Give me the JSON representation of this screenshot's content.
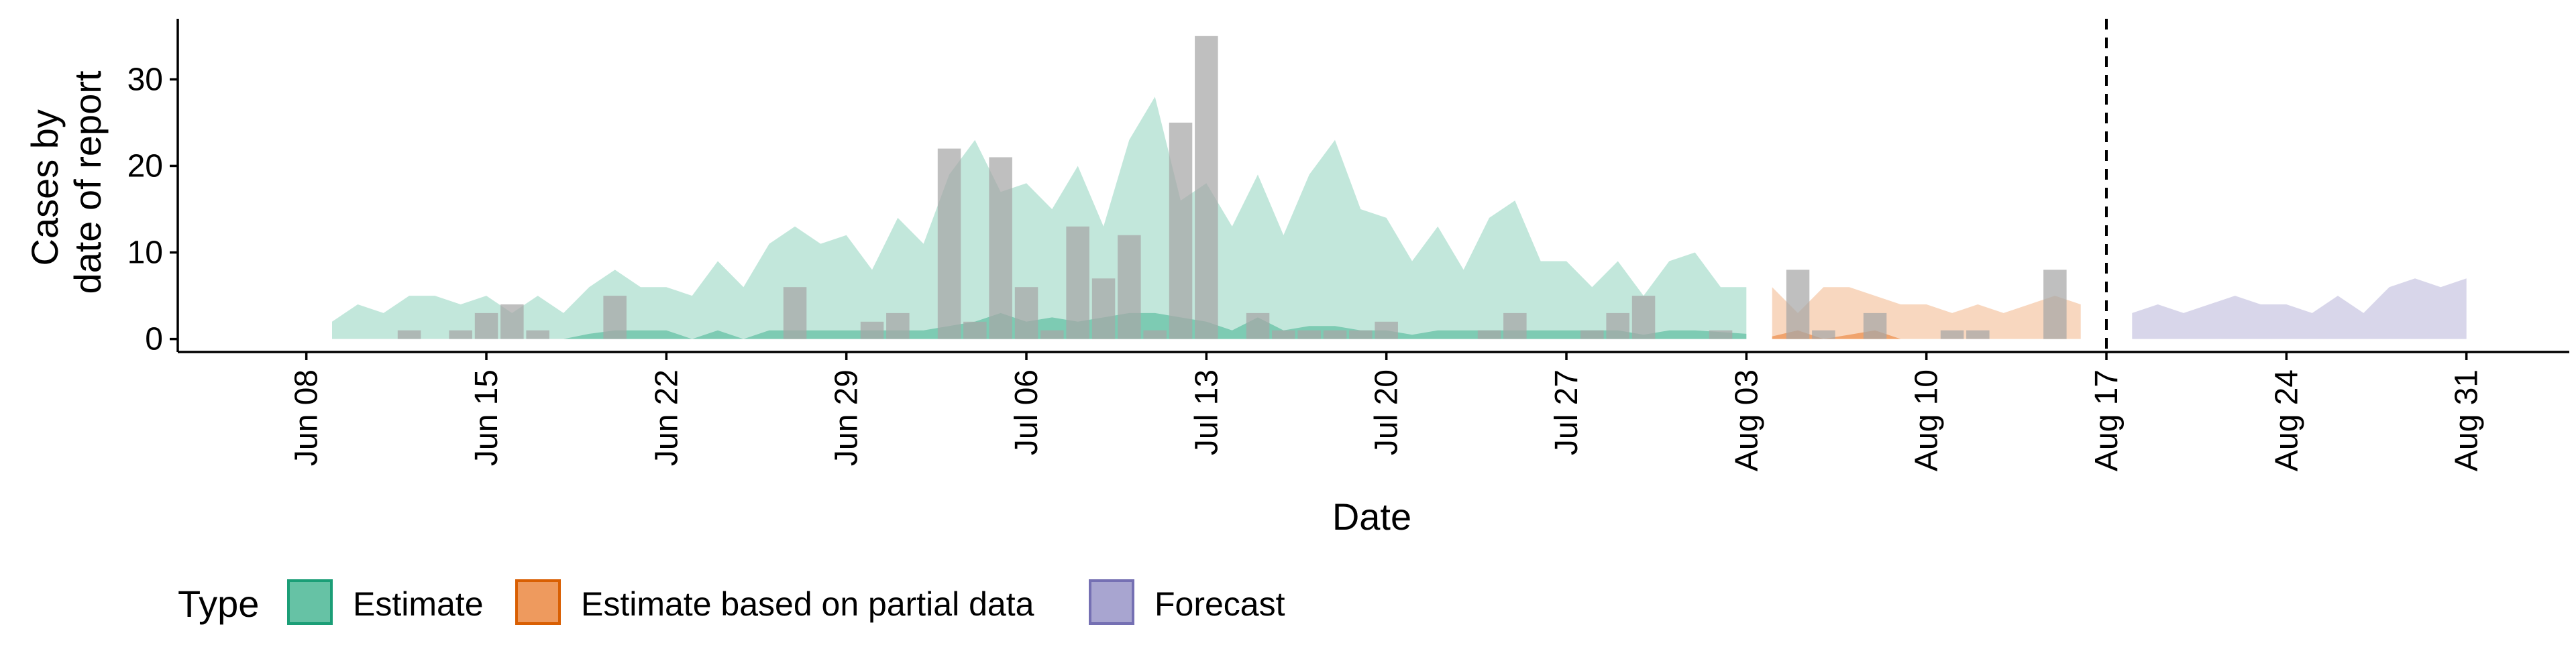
{
  "chart_data": {
    "type": "area",
    "xlabel": "Date",
    "ylabel_lines": [
      "Cases by",
      "date of report"
    ],
    "x_range": [
      "2020-06-03",
      "2020-09-04"
    ],
    "ylim": [
      -1.5,
      37
    ],
    "y_ticks": [
      0,
      10,
      20,
      30
    ],
    "x_tick_dates": [
      "2020-06-08",
      "2020-06-15",
      "2020-06-22",
      "2020-06-29",
      "2020-07-06",
      "2020-07-13",
      "2020-07-20",
      "2020-07-27",
      "2020-08-03",
      "2020-08-10",
      "2020-08-17",
      "2020-08-24",
      "2020-08-31"
    ],
    "x_tick_labels": [
      "Jun 08",
      "Jun 15",
      "Jun 22",
      "Jun 29",
      "Jul 06",
      "Jul 13",
      "Jul 20",
      "Jul 27",
      "Aug 03",
      "Aug 10",
      "Aug 17",
      "Aug 24",
      "Aug 31"
    ],
    "forecast_start_date": "2020-08-17",
    "grid": false,
    "legend": {
      "title": "Type",
      "position": "bottom",
      "entries": [
        {
          "label": "Estimate",
          "fill": "#66c2a5",
          "stroke": "#1b9e77"
        },
        {
          "label": "Estimate based on partial data",
          "fill": "#ee9a5e",
          "stroke": "#d95f02"
        },
        {
          "label": "Forecast",
          "fill": "#a8a5d0",
          "stroke": "#7570b3"
        }
      ]
    },
    "reported_cases": {
      "color": "#a6a6a6",
      "points": [
        [
          "2020-06-12",
          1
        ],
        [
          "2020-06-14",
          1
        ],
        [
          "2020-06-15",
          3
        ],
        [
          "2020-06-16",
          4
        ],
        [
          "2020-06-17",
          1
        ],
        [
          "2020-06-20",
          5
        ],
        [
          "2020-06-27",
          6
        ],
        [
          "2020-06-30",
          2
        ],
        [
          "2020-07-01",
          3
        ],
        [
          "2020-07-03",
          22
        ],
        [
          "2020-07-04",
          2
        ],
        [
          "2020-07-05",
          21
        ],
        [
          "2020-07-06",
          6
        ],
        [
          "2020-07-07",
          1
        ],
        [
          "2020-07-08",
          13
        ],
        [
          "2020-07-09",
          7
        ],
        [
          "2020-07-10",
          12
        ],
        [
          "2020-07-11",
          1
        ],
        [
          "2020-07-12",
          25
        ],
        [
          "2020-07-13",
          35
        ],
        [
          "2020-07-15",
          3
        ],
        [
          "2020-07-16",
          1
        ],
        [
          "2020-07-17",
          1
        ],
        [
          "2020-07-18",
          1
        ],
        [
          "2020-07-19",
          1
        ],
        [
          "2020-07-20",
          2
        ],
        [
          "2020-07-24",
          1
        ],
        [
          "2020-07-25",
          3
        ],
        [
          "2020-07-28",
          1
        ],
        [
          "2020-07-29",
          3
        ],
        [
          "2020-07-30",
          5
        ],
        [
          "2020-08-02",
          1
        ],
        [
          "2020-08-05",
          8
        ],
        [
          "2020-08-06",
          1
        ],
        [
          "2020-08-08",
          3
        ],
        [
          "2020-08-11",
          1
        ],
        [
          "2020-08-12",
          1
        ],
        [
          "2020-08-15",
          8
        ]
      ]
    },
    "series": [
      {
        "name": "Estimate",
        "fill": "#66c2a5",
        "bands": [
          {
            "opacity": 0.4,
            "dates": [
              "2020-06-09",
              "2020-06-10",
              "2020-06-11",
              "2020-06-12",
              "2020-06-13",
              "2020-06-14",
              "2020-06-15",
              "2020-06-16",
              "2020-06-17",
              "2020-06-18",
              "2020-06-19",
              "2020-06-20",
              "2020-06-21",
              "2020-06-22",
              "2020-06-23",
              "2020-06-24",
              "2020-06-25",
              "2020-06-26",
              "2020-06-27",
              "2020-06-28",
              "2020-06-29",
              "2020-06-30",
              "2020-07-01",
              "2020-07-02",
              "2020-07-03",
              "2020-07-04",
              "2020-07-05",
              "2020-07-06",
              "2020-07-07",
              "2020-07-08",
              "2020-07-09",
              "2020-07-10",
              "2020-07-11",
              "2020-07-12",
              "2020-07-13",
              "2020-07-14",
              "2020-07-15",
              "2020-07-16",
              "2020-07-17",
              "2020-07-18",
              "2020-07-19",
              "2020-07-20",
              "2020-07-21",
              "2020-07-22",
              "2020-07-23",
              "2020-07-24",
              "2020-07-25",
              "2020-07-26",
              "2020-07-27",
              "2020-07-28",
              "2020-07-29",
              "2020-07-30",
              "2020-07-31",
              "2020-08-01",
              "2020-08-02",
              "2020-08-03"
            ],
            "lower": [
              0,
              0,
              0,
              0,
              0,
              0,
              0,
              0,
              0,
              0,
              0,
              0,
              0,
              0,
              0,
              0,
              0,
              0,
              0,
              0,
              0,
              0,
              0,
              0,
              0,
              0,
              0,
              0,
              0,
              0,
              0,
              0,
              0,
              0,
              0,
              0,
              0,
              0,
              0,
              0,
              0,
              0,
              0,
              0,
              0,
              0,
              0,
              0,
              0,
              0,
              0,
              0,
              0,
              0,
              0,
              0
            ],
            "upper": [
              2,
              4,
              3,
              5,
              5,
              4,
              5,
              3,
              5,
              3,
              6,
              8,
              6,
              6,
              5,
              9,
              6,
              11,
              13,
              11,
              12,
              8,
              14,
              11,
              19,
              23,
              17,
              18,
              15,
              20,
              13,
              23,
              28,
              16,
              18,
              13,
              19,
              12,
              19,
              23,
              15,
              14,
              9,
              13,
              8,
              14,
              16,
              9,
              9,
              6,
              9,
              5,
              9,
              10,
              6,
              6
            ]
          },
          {
            "opacity": 0.75,
            "dates": [
              "2020-06-09",
              "2020-06-10",
              "2020-06-11",
              "2020-06-12",
              "2020-06-13",
              "2020-06-14",
              "2020-06-15",
              "2020-06-16",
              "2020-06-17",
              "2020-06-18",
              "2020-06-19",
              "2020-06-20",
              "2020-06-21",
              "2020-06-22",
              "2020-06-23",
              "2020-06-24",
              "2020-06-25",
              "2020-06-26",
              "2020-06-27",
              "2020-06-28",
              "2020-06-29",
              "2020-06-30",
              "2020-07-01",
              "2020-07-02",
              "2020-07-03",
              "2020-07-04",
              "2020-07-05",
              "2020-07-06",
              "2020-07-07",
              "2020-07-08",
              "2020-07-09",
              "2020-07-10",
              "2020-07-11",
              "2020-07-12",
              "2020-07-13",
              "2020-07-14",
              "2020-07-15",
              "2020-07-16",
              "2020-07-17",
              "2020-07-18",
              "2020-07-19",
              "2020-07-20",
              "2020-07-21",
              "2020-07-22",
              "2020-07-23",
              "2020-07-24",
              "2020-07-25",
              "2020-07-26",
              "2020-07-27",
              "2020-07-28",
              "2020-07-29",
              "2020-07-30",
              "2020-07-31",
              "2020-08-01",
              "2020-08-02",
              "2020-08-03"
            ],
            "lower": [
              0,
              0,
              0,
              0,
              0,
              0,
              0,
              0,
              0,
              0,
              0,
              0,
              0,
              0,
              0,
              0,
              0,
              0,
              0,
              0,
              0,
              0,
              0,
              0,
              0,
              0,
              0,
              0,
              0,
              0,
              0,
              0,
              0,
              0,
              0,
              0,
              0,
              0,
              0,
              0,
              0,
              0,
              0,
              0,
              0,
              0,
              0,
              0,
              0,
              0,
              0,
              0,
              0,
              0,
              0,
              0
            ],
            "upper": [
              0,
              0,
              0,
              0,
              0,
              0,
              0,
              0,
              0,
              0,
              0.6,
              1,
              1,
              1,
              0,
              1,
              0,
              1,
              1,
              1,
              1,
              1,
              1,
              1,
              1.5,
              2,
              3,
              2,
              2.5,
              2,
              2.5,
              3,
              3,
              2.5,
              2,
              1,
              2.5,
              1,
              1.5,
              1.5,
              1,
              1,
              0.5,
              1,
              1,
              1,
              1,
              1,
              1,
              1,
              1,
              0.5,
              1,
              1,
              0.8,
              0.6
            ]
          }
        ]
      },
      {
        "name": "Estimate based on partial data",
        "fill": "#ee9a5e",
        "bands": [
          {
            "opacity": 0.4,
            "dates": [
              "2020-08-04",
              "2020-08-05",
              "2020-08-06",
              "2020-08-07",
              "2020-08-08",
              "2020-08-09",
              "2020-08-10",
              "2020-08-11",
              "2020-08-12",
              "2020-08-13",
              "2020-08-14",
              "2020-08-15",
              "2020-08-16"
            ],
            "lower": [
              0,
              0,
              0,
              0,
              0,
              0,
              0,
              0,
              0,
              0,
              0,
              0,
              0
            ],
            "upper": [
              6,
              3,
              6,
              6,
              5,
              4,
              4,
              3,
              4,
              3,
              4,
              5,
              4
            ]
          },
          {
            "opacity": 0.85,
            "dates": [
              "2020-08-04",
              "2020-08-05",
              "2020-08-06",
              "2020-08-07",
              "2020-08-08",
              "2020-08-09",
              "2020-08-10"
            ],
            "lower": [
              0,
              0,
              0,
              0,
              0,
              0,
              0
            ],
            "upper": [
              0.3,
              1,
              0,
              0.5,
              1,
              0,
              0
            ]
          }
        ]
      },
      {
        "name": "Forecast",
        "fill": "#a8a5d0",
        "bands": [
          {
            "opacity": 0.45,
            "dates": [
              "2020-08-18",
              "2020-08-19",
              "2020-08-20",
              "2020-08-21",
              "2020-08-22",
              "2020-08-23",
              "2020-08-24",
              "2020-08-25",
              "2020-08-26",
              "2020-08-27",
              "2020-08-28",
              "2020-08-29",
              "2020-08-30",
              "2020-08-31"
            ],
            "lower": [
              0,
              0,
              0,
              0,
              0,
              0,
              0,
              0,
              0,
              0,
              0,
              0,
              0,
              0
            ],
            "upper": [
              3,
              4,
              3,
              4,
              5,
              4,
              4,
              3,
              5,
              3,
              6,
              7,
              6,
              7
            ]
          }
        ]
      }
    ]
  }
}
